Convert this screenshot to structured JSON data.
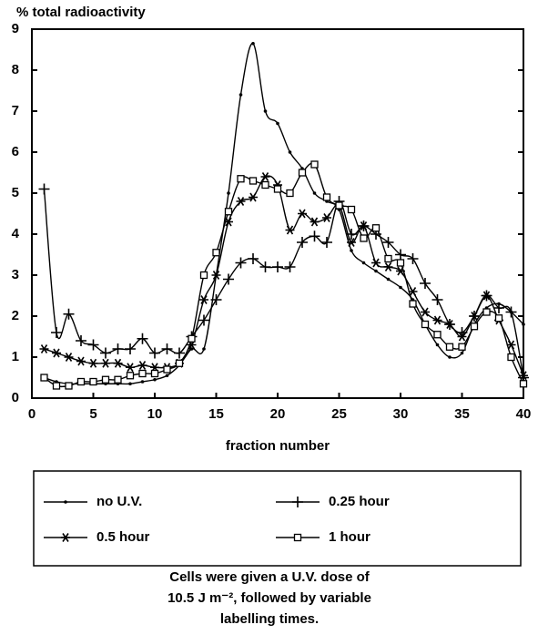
{
  "chart_data": {
    "type": "line",
    "title": "% total radioactivity",
    "x_label": "fraction number",
    "x": [
      1,
      2,
      3,
      4,
      5,
      6,
      7,
      8,
      9,
      10,
      11,
      12,
      13,
      14,
      15,
      16,
      17,
      18,
      19,
      20,
      21,
      22,
      23,
      24,
      25,
      26,
      27,
      28,
      29,
      30,
      31,
      32,
      33,
      34,
      35,
      36,
      37,
      38,
      39,
      40
    ],
    "series": [
      {
        "name": "no U.V.",
        "color": "#000000",
        "marker": "dot",
        "values": [
          0.5,
          0.4,
          0.35,
          0.35,
          0.35,
          0.35,
          0.35,
          0.35,
          0.4,
          0.45,
          0.55,
          0.8,
          1.2,
          1.2,
          3.0,
          5.0,
          7.4,
          8.65,
          7.0,
          6.7,
          6.0,
          5.6,
          5.0,
          4.8,
          4.6,
          3.6,
          3.3,
          3.1,
          2.9,
          2.7,
          2.4,
          1.8,
          1.3,
          1.0,
          1.1,
          1.8,
          2.2,
          2.3,
          2.1,
          1.8
        ]
      },
      {
        "name": "0.25 hour",
        "color": "#000000",
        "marker": "plus",
        "values": [
          5.1,
          1.6,
          2.05,
          1.4,
          1.3,
          1.1,
          1.2,
          1.2,
          1.45,
          1.1,
          1.2,
          1.1,
          1.5,
          1.9,
          2.4,
          2.9,
          3.3,
          3.4,
          3.2,
          3.2,
          3.2,
          3.8,
          3.95,
          3.8,
          4.8,
          4.0,
          4.2,
          4.0,
          3.8,
          3.5,
          3.4,
          2.8,
          2.4,
          1.8,
          1.6,
          2.0,
          2.5,
          2.2,
          2.1,
          0.5
        ]
      },
      {
        "name": "0.5 hour",
        "color": "#000000",
        "marker": "asterisk",
        "values": [
          1.2,
          1.1,
          1.0,
          0.9,
          0.85,
          0.85,
          0.85,
          0.75,
          0.8,
          0.75,
          0.75,
          0.85,
          1.3,
          2.4,
          3.0,
          4.3,
          4.8,
          4.9,
          5.4,
          5.2,
          4.1,
          4.5,
          4.3,
          4.4,
          4.7,
          3.8,
          4.2,
          3.3,
          3.2,
          3.1,
          2.6,
          2.1,
          1.9,
          1.8,
          1.5,
          2.0,
          2.5,
          1.9,
          1.3,
          0.55
        ]
      },
      {
        "name": "1 hour",
        "color": "#000000",
        "marker": "square",
        "values": [
          0.5,
          0.3,
          0.3,
          0.4,
          0.4,
          0.45,
          0.45,
          0.55,
          0.6,
          0.6,
          0.7,
          0.85,
          1.45,
          3.0,
          3.55,
          4.55,
          5.35,
          5.3,
          5.2,
          5.1,
          5.0,
          5.5,
          5.7,
          4.9,
          4.7,
          4.6,
          3.9,
          4.15,
          3.4,
          3.3,
          2.3,
          1.8,
          1.55,
          1.25,
          1.25,
          1.75,
          2.1,
          1.95,
          1.0,
          0.35
        ]
      }
    ],
    "xlim": [
      0,
      40
    ],
    "xticks": [
      0,
      5,
      10,
      15,
      20,
      25,
      30,
      35,
      40
    ],
    "ylim": [
      0,
      9
    ],
    "yticks": [
      0,
      1,
      2,
      3,
      4,
      5,
      6,
      7,
      8,
      9
    ],
    "caption": [
      "Cells were given a U.V. dose of",
      "10.5 J m⁻², followed by variable",
      "labelling times."
    ]
  }
}
